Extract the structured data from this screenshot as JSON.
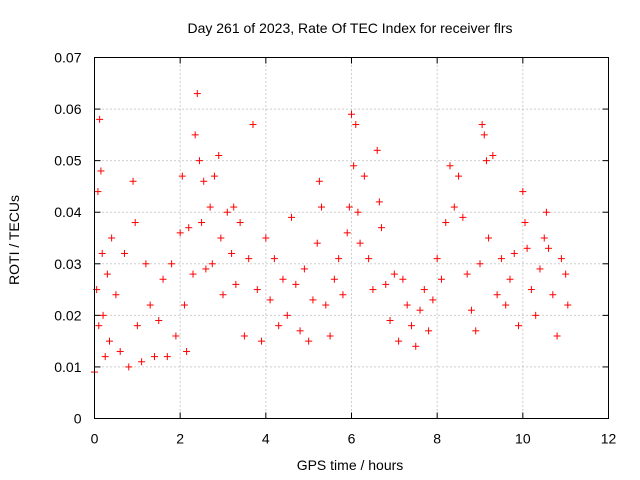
{
  "chart_data": {
    "type": "scatter",
    "title": "Day 261 of 2023, Rate Of TEC Index for receiver flrs",
    "xlabel": "GPS time / hours",
    "ylabel": "ROTI / TECUs",
    "xlim": [
      0,
      12
    ],
    "ylim": [
      0,
      0.07
    ],
    "x_ticks": [
      "0",
      "2",
      "4",
      "6",
      "8",
      "10",
      "12"
    ],
    "y_ticks": [
      "0",
      "0.01",
      "0.02",
      "0.03",
      "0.04",
      "0.05",
      "0.06",
      "0.07"
    ],
    "grid": true,
    "marker": "plus",
    "color": "#ff0000",
    "series": [
      {
        "x": [
          0.0,
          0.05,
          0.08,
          0.1,
          0.12,
          0.15,
          0.18,
          0.2,
          0.25,
          0.3,
          0.35,
          0.4,
          0.5,
          0.6,
          0.7,
          0.8,
          0.9,
          0.95,
          1.0,
          1.1,
          1.2,
          1.3,
          1.4,
          1.5,
          1.6,
          1.7,
          1.8,
          1.9,
          2.0,
          2.05,
          2.1,
          2.15,
          2.2,
          2.3,
          2.35,
          2.4,
          2.45,
          2.5,
          2.55,
          2.6,
          2.7,
          2.75,
          2.8,
          2.9,
          2.95,
          3.0,
          3.1,
          3.2,
          3.25,
          3.3,
          3.4,
          3.5,
          3.6,
          3.7,
          3.8,
          3.9,
          4.0,
          4.1,
          4.2,
          4.3,
          4.4,
          4.5,
          4.6,
          4.7,
          4.8,
          4.9,
          5.0,
          5.1,
          5.2,
          5.25,
          5.3,
          5.4,
          5.5,
          5.6,
          5.7,
          5.8,
          5.9,
          5.95,
          6.0,
          6.05,
          6.1,
          6.15,
          6.2,
          6.3,
          6.4,
          6.5,
          6.6,
          6.65,
          6.7,
          6.8,
          6.9,
          7.0,
          7.1,
          7.2,
          7.3,
          7.4,
          7.5,
          7.6,
          7.7,
          7.8,
          7.9,
          8.0,
          8.1,
          8.2,
          8.3,
          8.4,
          8.5,
          8.6,
          8.7,
          8.8,
          8.9,
          9.0,
          9.05,
          9.1,
          9.15,
          9.2,
          9.3,
          9.4,
          9.5,
          9.6,
          9.7,
          9.8,
          9.9,
          10.0,
          10.05,
          10.1,
          10.2,
          10.3,
          10.4,
          10.5,
          10.55,
          10.6,
          10.7,
          10.8,
          10.9,
          11.0,
          11.05
        ],
        "y": [
          0.009,
          0.025,
          0.044,
          0.018,
          0.058,
          0.048,
          0.032,
          0.02,
          0.012,
          0.028,
          0.015,
          0.035,
          0.024,
          0.013,
          0.032,
          0.01,
          0.046,
          0.038,
          0.018,
          0.011,
          0.03,
          0.022,
          0.012,
          0.019,
          0.027,
          0.012,
          0.03,
          0.016,
          0.036,
          0.047,
          0.022,
          0.013,
          0.037,
          0.028,
          0.055,
          0.063,
          0.05,
          0.038,
          0.046,
          0.029,
          0.041,
          0.03,
          0.047,
          0.051,
          0.035,
          0.024,
          0.04,
          0.032,
          0.041,
          0.026,
          0.038,
          0.016,
          0.031,
          0.057,
          0.025,
          0.015,
          0.035,
          0.023,
          0.031,
          0.018,
          0.027,
          0.02,
          0.039,
          0.026,
          0.017,
          0.029,
          0.015,
          0.023,
          0.034,
          0.046,
          0.041,
          0.022,
          0.016,
          0.027,
          0.031,
          0.024,
          0.036,
          0.041,
          0.059,
          0.049,
          0.057,
          0.04,
          0.034,
          0.047,
          0.031,
          0.025,
          0.052,
          0.042,
          0.037,
          0.026,
          0.019,
          0.028,
          0.015,
          0.027,
          0.022,
          0.018,
          0.014,
          0.021,
          0.025,
          0.017,
          0.023,
          0.031,
          0.027,
          0.038,
          0.049,
          0.041,
          0.047,
          0.039,
          0.028,
          0.021,
          0.017,
          0.03,
          0.057,
          0.055,
          0.05,
          0.035,
          0.051,
          0.024,
          0.031,
          0.022,
          0.027,
          0.032,
          0.018,
          0.044,
          0.038,
          0.033,
          0.025,
          0.02,
          0.029,
          0.035,
          0.04,
          0.033,
          0.024,
          0.016,
          0.031,
          0.028,
          0.022
        ]
      }
    ]
  }
}
